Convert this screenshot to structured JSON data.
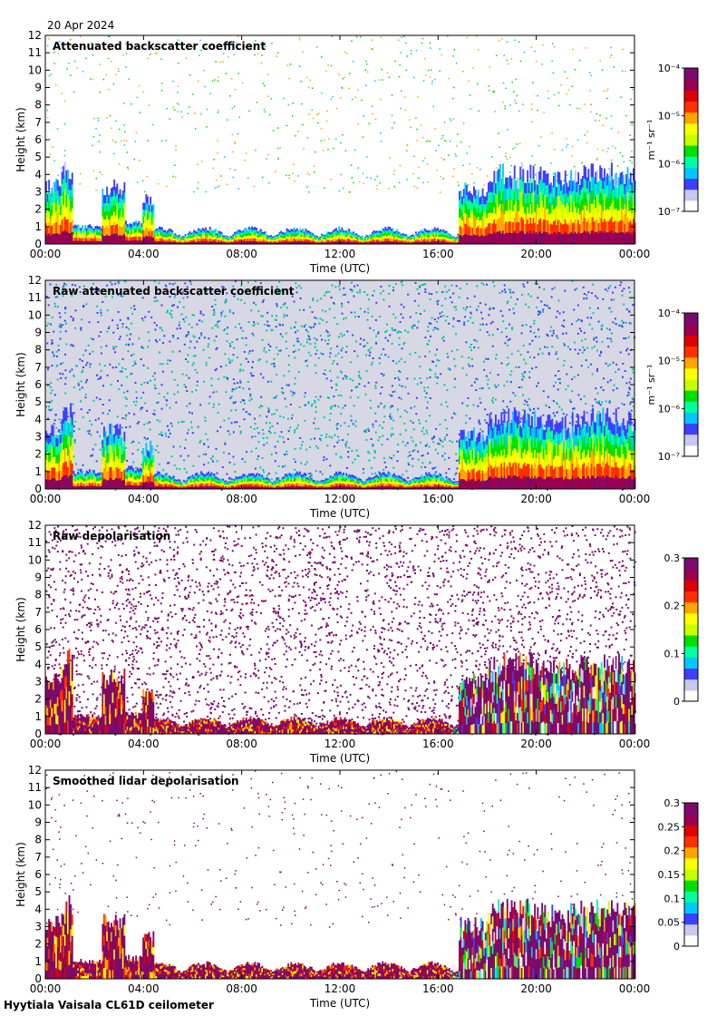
{
  "date": "20 Apr 2024",
  "footer": "Hyytiala Vaisala CL61D ceilometer",
  "chart_data": [
    {
      "type": "heatmap",
      "title": "Attenuated backscatter coefficient",
      "xlabel": "Time (UTC)",
      "ylabel": "Height (km)",
      "x_ticks": [
        "00:00",
        "04:00",
        "08:00",
        "12:00",
        "16:00",
        "20:00",
        "00:00"
      ],
      "y_ticks": [
        "0",
        "1",
        "2",
        "3",
        "4",
        "5",
        "6",
        "7",
        "8",
        "9",
        "10",
        "11",
        "12"
      ],
      "ylim": [
        0,
        12
      ],
      "xlim_hours": [
        0,
        24
      ],
      "colorbar": {
        "scale": "log",
        "unit": "m⁻¹ sr⁻¹",
        "ticks": [
          "10⁻⁴",
          "10⁻⁵",
          "10⁻⁶",
          "10⁻⁷"
        ],
        "colormap": "rainbow"
      },
      "background": "white"
    },
    {
      "type": "heatmap",
      "title": "Raw attenuated backscatter coefficient",
      "xlabel": "Time (UTC)",
      "ylabel": "Height (km)",
      "x_ticks": [
        "00:00",
        "04:00",
        "08:00",
        "12:00",
        "16:00",
        "20:00",
        "00:00"
      ],
      "y_ticks": [
        "0",
        "1",
        "2",
        "3",
        "4",
        "5",
        "6",
        "7",
        "8",
        "9",
        "10",
        "11",
        "12"
      ],
      "ylim": [
        0,
        12
      ],
      "xlim_hours": [
        0,
        24
      ],
      "colorbar": {
        "scale": "log",
        "unit": "m⁻¹ sr⁻¹",
        "ticks": [
          "10⁻⁴",
          "10⁻⁵",
          "10⁻⁶",
          "10⁻⁷"
        ],
        "colormap": "rainbow"
      },
      "background": "noise"
    },
    {
      "type": "heatmap",
      "title": "Raw depolarisation",
      "xlabel": "Time (UTC)",
      "ylabel": "Height (km)",
      "x_ticks": [
        "00:00",
        "04:00",
        "08:00",
        "12:00",
        "16:00",
        "20:00",
        "00:00"
      ],
      "y_ticks": [
        "0",
        "1",
        "2",
        "3",
        "4",
        "5",
        "6",
        "7",
        "8",
        "9",
        "10",
        "11",
        "12"
      ],
      "ylim": [
        0,
        12
      ],
      "xlim_hours": [
        0,
        24
      ],
      "colorbar": {
        "scale": "linear",
        "unit": "",
        "ticks": [
          "0.3",
          "0.2",
          "0.1",
          "0"
        ],
        "colormap": "rainbow"
      },
      "background": "purple-noise"
    },
    {
      "type": "heatmap",
      "title": "Smoothed lidar depolarisation",
      "xlabel": "Time (UTC)",
      "ylabel": "Height (km)",
      "x_ticks": [
        "00:00",
        "04:00",
        "08:00",
        "12:00",
        "16:00",
        "20:00",
        "00:00"
      ],
      "y_ticks": [
        "0",
        "1",
        "2",
        "3",
        "4",
        "5",
        "6",
        "7",
        "8",
        "9",
        "10",
        "11",
        "12"
      ],
      "ylim": [
        0,
        12
      ],
      "xlim_hours": [
        0,
        24
      ],
      "colorbar": {
        "scale": "linear",
        "unit": "",
        "ticks": [
          "0.3",
          "0.25",
          "0.2",
          "0.15",
          "0.1",
          "0.05",
          "0"
        ],
        "colormap": "rainbow"
      },
      "background": "sparse-white"
    }
  ]
}
